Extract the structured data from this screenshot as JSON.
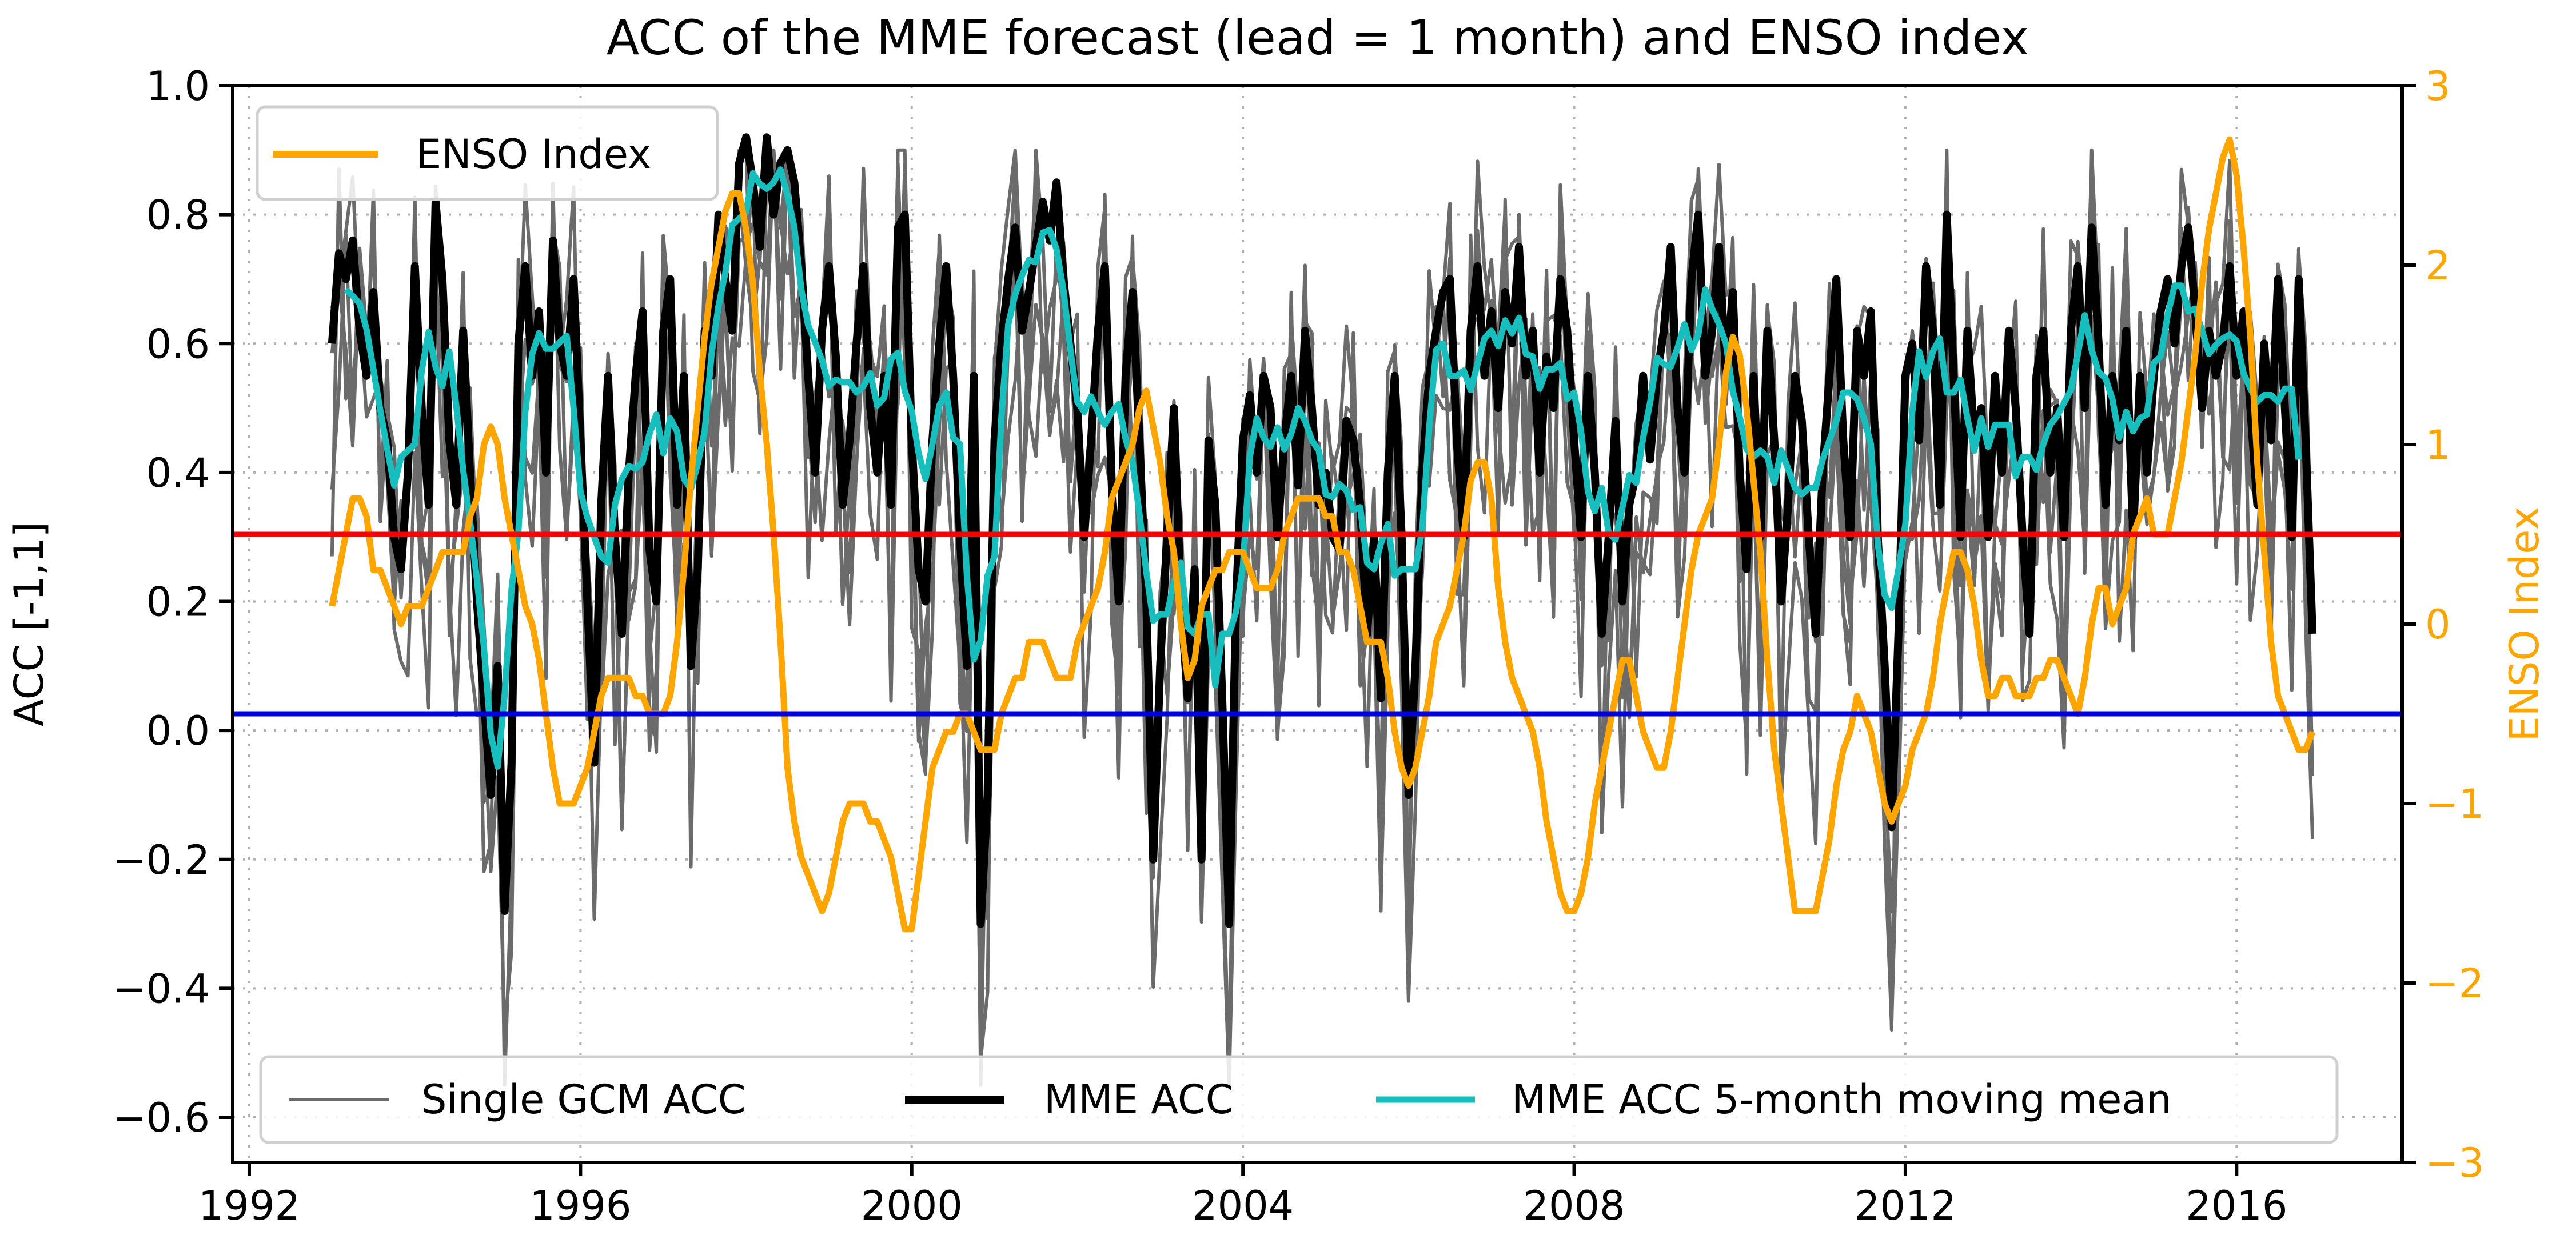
{
  "chart_data": {
    "type": "line",
    "title": "ACC of the MME forecast (lead = 1 month) and ENSO index",
    "xlabel": "",
    "ylabel": "ACC [-1,1]",
    "y2label": "ENSO Index",
    "xlim": [
      1991.8,
      2018.0
    ],
    "ylim": [
      -0.67,
      1.0
    ],
    "y2lim": [
      -3,
      3
    ],
    "grid": true,
    "x_start": 1993.0,
    "x_step_years": 0.083333,
    "x_ticks": [
      1992,
      1996,
      2000,
      2004,
      2008,
      2012,
      2016
    ],
    "x_tick_labels": [
      "1992",
      "1996",
      "2000",
      "2004",
      "2008",
      "2012",
      "2016"
    ],
    "y_ticks": [
      -0.6,
      -0.4,
      -0.2,
      0.0,
      0.2,
      0.4,
      0.6,
      0.8,
      1.0
    ],
    "y_tick_labels": [
      "−0.6",
      "−0.4",
      "−0.2",
      "0.0",
      "0.2",
      "0.4",
      "0.6",
      "0.8",
      "1.0"
    ],
    "y2_ticks": [
      -3,
      -2,
      -1,
      0,
      1,
      2,
      3
    ],
    "y2_tick_labels": [
      "−3",
      "−2",
      "−1",
      "0",
      "1",
      "2",
      "3"
    ],
    "colors": {
      "gcm": "#6b6b6b",
      "mme": "#000000",
      "mean": "#17bebe",
      "enso": "#ffa500",
      "upper": "#ff0000",
      "lower": "#0000dd",
      "enso_axis": "#ffa500"
    },
    "threshold_lines": [
      {
        "name": "upper-threshold-line",
        "enso_value": 0.5,
        "color": "#ff0000"
      },
      {
        "name": "lower-threshold-line",
        "enso_value": -0.5,
        "color": "#0000dd"
      }
    ],
    "legend_top": {
      "placement": "top-left",
      "entries": [
        "ENSO Index"
      ]
    },
    "legend_bottom": {
      "placement": "bottom",
      "entries": [
        "Single GCM ACC",
        "MME ACC",
        "MME ACC 5-month moving mean"
      ]
    },
    "moving_mean_window": 5,
    "gcm_series_count": 4,
    "mme_acc": [
      0.6,
      0.74,
      0.7,
      0.76,
      0.62,
      0.55,
      0.68,
      0.5,
      0.45,
      0.3,
      0.25,
      0.4,
      0.72,
      0.5,
      0.35,
      0.82,
      0.7,
      0.45,
      0.35,
      0.62,
      0.4,
      0.2,
      0.05,
      -0.1,
      0.1,
      -0.28,
      -0.05,
      0.6,
      0.72,
      0.55,
      0.65,
      0.4,
      0.76,
      0.6,
      0.55,
      0.7,
      0.45,
      0.2,
      -0.05,
      0.35,
      0.55,
      0.3,
      0.15,
      0.4,
      0.55,
      0.65,
      0.28,
      0.2,
      0.62,
      0.7,
      0.35,
      0.55,
      0.1,
      0.25,
      0.62,
      0.55,
      0.8,
      0.7,
      0.62,
      0.88,
      0.92,
      0.85,
      0.75,
      0.92,
      0.8,
      0.88,
      0.9,
      0.85,
      0.72,
      0.55,
      0.4,
      0.62,
      0.72,
      0.58,
      0.35,
      0.45,
      0.6,
      0.72,
      0.5,
      0.4,
      0.55,
      0.35,
      0.78,
      0.8,
      0.45,
      0.25,
      0.2,
      0.45,
      0.6,
      0.72,
      0.55,
      0.3,
      0.1,
      0.55,
      -0.3,
      -0.1,
      0.45,
      0.6,
      0.7,
      0.78,
      0.62,
      0.68,
      0.75,
      0.82,
      0.76,
      0.85,
      0.7,
      0.6,
      0.5,
      0.3,
      0.45,
      0.62,
      0.72,
      0.38,
      0.2,
      0.55,
      0.68,
      0.45,
      0.2,
      -0.2,
      0.1,
      0.3,
      0.5,
      0.2,
      0.05,
      0.25,
      -0.2,
      0.45,
      0.35,
      0.05,
      -0.3,
      0.2,
      0.45,
      0.52,
      0.4,
      0.55,
      0.5,
      0.3,
      0.45,
      0.55,
      0.38,
      0.62,
      0.5,
      0.35,
      0.4,
      0.3,
      0.28,
      0.48,
      0.45,
      0.35,
      0.15,
      0.3,
      0.05,
      0.4,
      0.55,
      0.3,
      -0.1,
      0.1,
      0.4,
      0.55,
      0.62,
      0.68,
      0.7,
      0.45,
      0.3,
      0.62,
      0.72,
      0.55,
      0.65,
      0.5,
      0.68,
      0.6,
      0.75,
      0.55,
      0.62,
      0.4,
      0.58,
      0.5,
      0.7,
      0.62,
      0.45,
      0.3,
      0.55,
      0.4,
      0.15,
      0.3,
      0.48,
      0.2,
      0.35,
      0.4,
      0.55,
      0.42,
      0.55,
      0.62,
      0.75,
      0.5,
      0.4,
      0.7,
      0.8,
      0.55,
      0.62,
      0.75,
      0.55,
      0.68,
      0.4,
      0.25,
      0.55,
      0.3,
      0.62,
      0.45,
      0.2,
      0.35,
      0.55,
      0.48,
      0.3,
      0.15,
      0.4,
      0.55,
      0.7,
      0.45,
      0.3,
      0.62,
      0.55,
      0.65,
      0.3,
      0.1,
      -0.15,
      0.15,
      0.55,
      0.6,
      0.45,
      0.72,
      0.62,
      0.35,
      0.8,
      0.55,
      0.3,
      0.62,
      0.45,
      0.5,
      0.3,
      0.55,
      0.4,
      0.62,
      0.5,
      0.3,
      0.15,
      0.55,
      0.62,
      0.4,
      0.5,
      0.3,
      0.62,
      0.72,
      0.5,
      0.78,
      0.6,
      0.35,
      0.55,
      0.45,
      0.62,
      0.3,
      0.55,
      0.4,
      0.55,
      0.65,
      0.7,
      0.6,
      0.72,
      0.78,
      0.65,
      0.5,
      0.62,
      0.55,
      0.6,
      0.72,
      0.55,
      0.65,
      0.5,
      0.35,
      0.6,
      0.45,
      0.7,
      0.5,
      0.3,
      0.7,
      0.45,
      0.15
    ],
    "enso_index": [
      0.1,
      0.3,
      0.5,
      0.7,
      0.7,
      0.6,
      0.3,
      0.3,
      0.2,
      0.1,
      0.0,
      0.1,
      0.1,
      0.1,
      0.2,
      0.3,
      0.4,
      0.4,
      0.4,
      0.4,
      0.6,
      0.7,
      1.0,
      1.1,
      1.0,
      0.7,
      0.5,
      0.3,
      0.1,
      0.0,
      -0.2,
      -0.5,
      -0.8,
      -1.0,
      -1.0,
      -1.0,
      -0.9,
      -0.8,
      -0.6,
      -0.4,
      -0.3,
      -0.3,
      -0.3,
      -0.3,
      -0.4,
      -0.4,
      -0.5,
      -0.5,
      -0.5,
      -0.4,
      -0.1,
      0.3,
      0.8,
      1.2,
      1.6,
      1.9,
      2.1,
      2.3,
      2.4,
      2.4,
      2.2,
      1.9,
      1.4,
      1.0,
      0.5,
      -0.1,
      -0.8,
      -1.1,
      -1.3,
      -1.4,
      -1.5,
      -1.6,
      -1.5,
      -1.3,
      -1.1,
      -1.0,
      -1.0,
      -1.0,
      -1.1,
      -1.1,
      -1.2,
      -1.3,
      -1.5,
      -1.7,
      -1.7,
      -1.4,
      -1.1,
      -0.8,
      -0.7,
      -0.6,
      -0.6,
      -0.5,
      -0.5,
      -0.6,
      -0.7,
      -0.7,
      -0.7,
      -0.5,
      -0.4,
      -0.3,
      -0.3,
      -0.1,
      -0.1,
      -0.1,
      -0.2,
      -0.3,
      -0.3,
      -0.3,
      -0.1,
      0.0,
      0.1,
      0.2,
      0.4,
      0.7,
      0.8,
      0.9,
      1.0,
      1.2,
      1.3,
      1.1,
      0.9,
      0.6,
      0.4,
      0.0,
      -0.3,
      -0.2,
      0.1,
      0.2,
      0.3,
      0.3,
      0.4,
      0.4,
      0.4,
      0.3,
      0.2,
      0.2,
      0.2,
      0.3,
      0.5,
      0.6,
      0.7,
      0.7,
      0.7,
      0.7,
      0.6,
      0.6,
      0.4,
      0.4,
      0.3,
      0.1,
      -0.1,
      -0.1,
      -0.1,
      -0.3,
      -0.6,
      -0.8,
      -0.9,
      -0.8,
      -0.6,
      -0.4,
      -0.1,
      0.0,
      0.1,
      0.3,
      0.5,
      0.8,
      0.9,
      0.9,
      0.7,
      0.2,
      -0.1,
      -0.3,
      -0.4,
      -0.5,
      -0.6,
      -0.8,
      -1.1,
      -1.3,
      -1.5,
      -1.6,
      -1.6,
      -1.5,
      -1.3,
      -1.0,
      -0.8,
      -0.6,
      -0.4,
      -0.2,
      -0.2,
      -0.4,
      -0.6,
      -0.7,
      -0.8,
      -0.8,
      -0.6,
      -0.3,
      0.0,
      0.3,
      0.5,
      0.6,
      0.7,
      1.0,
      1.4,
      1.6,
      1.5,
      1.2,
      0.8,
      0.4,
      -0.2,
      -0.7,
      -1.0,
      -1.3,
      -1.6,
      -1.6,
      -1.6,
      -1.6,
      -1.4,
      -1.2,
      -0.9,
      -0.7,
      -0.6,
      -0.4,
      -0.5,
      -0.6,
      -0.8,
      -1.0,
      -1.1,
      -1.0,
      -0.9,
      -0.7,
      -0.6,
      -0.5,
      -0.3,
      0.0,
      0.2,
      0.4,
      0.4,
      0.3,
      0.1,
      -0.2,
      -0.4,
      -0.4,
      -0.3,
      -0.3,
      -0.4,
      -0.4,
      -0.4,
      -0.3,
      -0.3,
      -0.2,
      -0.2,
      -0.3,
      -0.4,
      -0.5,
      -0.3,
      0.0,
      0.2,
      0.2,
      0.0,
      0.1,
      0.2,
      0.5,
      0.6,
      0.7,
      0.5,
      0.5,
      0.5,
      0.7,
      0.9,
      1.2,
      1.5,
      1.9,
      2.2,
      2.4,
      2.6,
      2.7,
      2.5,
      2.1,
      1.6,
      0.9,
      0.4,
      -0.1,
      -0.4,
      -0.5,
      -0.6,
      -0.7,
      -0.7,
      -0.6
    ]
  }
}
